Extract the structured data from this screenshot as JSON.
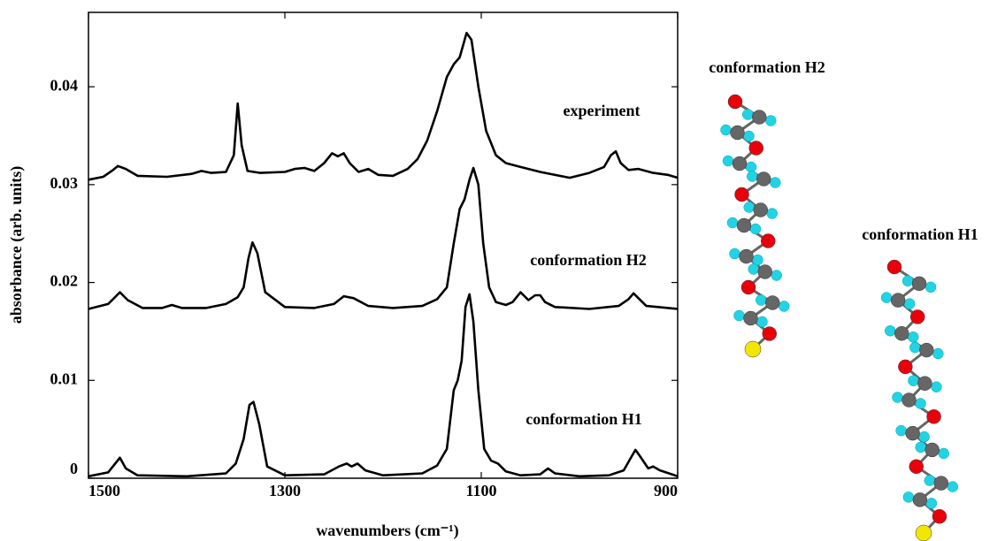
{
  "chart_data": {
    "type": "line",
    "xlabel": "wavenumbers  (cm⁻¹)",
    "ylabel": "absorbance  (arb. units)",
    "xlim": [
      1500,
      900
    ],
    "xticks": [
      1500,
      1300,
      1100,
      900
    ],
    "ylim": [
      0,
      0.0476
    ],
    "yticks": [
      0,
      0.01,
      0.02,
      0.03,
      0.04
    ],
    "series": [
      {
        "name": "experiment",
        "color": "#000000",
        "x": [
          1500,
          1485,
          1475,
          1470,
          1462,
          1450,
          1420,
          1395,
          1385,
          1375,
          1360,
          1352,
          1348,
          1344,
          1338,
          1325,
          1300,
          1290,
          1280,
          1270,
          1260,
          1252,
          1246,
          1240,
          1234,
          1225,
          1215,
          1205,
          1190,
          1175,
          1165,
          1155,
          1145,
          1135,
          1128,
          1122,
          1115,
          1110,
          1103,
          1095,
          1085,
          1075,
          1060,
          1040,
          1010,
          990,
          975,
          968,
          963,
          958,
          950,
          940,
          925,
          910,
          900
        ],
        "values": [
          0.0305,
          0.0308,
          0.0315,
          0.0319,
          0.0316,
          0.0309,
          0.0308,
          0.0311,
          0.0314,
          0.0312,
          0.0313,
          0.033,
          0.0383,
          0.034,
          0.0314,
          0.0312,
          0.0313,
          0.0316,
          0.0317,
          0.0314,
          0.0322,
          0.0332,
          0.0329,
          0.0332,
          0.0322,
          0.0313,
          0.0316,
          0.031,
          0.0309,
          0.0316,
          0.0326,
          0.0345,
          0.0375,
          0.041,
          0.0423,
          0.043,
          0.0455,
          0.0448,
          0.04,
          0.0355,
          0.033,
          0.0322,
          0.0318,
          0.0313,
          0.0307,
          0.0312,
          0.0318,
          0.033,
          0.0334,
          0.0322,
          0.0315,
          0.0316,
          0.0312,
          0.031,
          0.0307
        ]
      },
      {
        "name": "conformation H2",
        "color": "#000000",
        "x": [
          1500,
          1480,
          1472,
          1468,
          1460,
          1445,
          1425,
          1415,
          1405,
          1380,
          1360,
          1348,
          1342,
          1337,
          1333,
          1328,
          1320,
          1300,
          1270,
          1250,
          1240,
          1230,
          1215,
          1190,
          1160,
          1145,
          1135,
          1128,
          1122,
          1117,
          1112,
          1108,
          1103,
          1098,
          1092,
          1085,
          1075,
          1068,
          1060,
          1052,
          1045,
          1040,
          1035,
          1025,
          990,
          960,
          950,
          945,
          940,
          932,
          920,
          900
        ],
        "values": [
          0.0173,
          0.0178,
          0.0186,
          0.019,
          0.0182,
          0.0174,
          0.0174,
          0.0177,
          0.0174,
          0.0174,
          0.0178,
          0.0185,
          0.0195,
          0.0225,
          0.0241,
          0.023,
          0.019,
          0.0175,
          0.0174,
          0.0178,
          0.0186,
          0.0184,
          0.0176,
          0.0174,
          0.0176,
          0.0183,
          0.0195,
          0.024,
          0.0275,
          0.0285,
          0.0305,
          0.0317,
          0.03,
          0.024,
          0.0195,
          0.018,
          0.0177,
          0.018,
          0.019,
          0.0182,
          0.0187,
          0.0187,
          0.018,
          0.0175,
          0.0173,
          0.0176,
          0.0183,
          0.0189,
          0.0184,
          0.0176,
          0.0175,
          0.0173
        ]
      },
      {
        "name": "conformation H1",
        "color": "#000000",
        "x": [
          1500,
          1480,
          1472,
          1468,
          1462,
          1450,
          1400,
          1360,
          1350,
          1342,
          1336,
          1332,
          1326,
          1318,
          1300,
          1260,
          1245,
          1237,
          1232,
          1226,
          1218,
          1200,
          1160,
          1145,
          1135,
          1128,
          1124,
          1120,
          1116,
          1112,
          1108,
          1103,
          1097,
          1090,
          1083,
          1075,
          1060,
          1040,
          1032,
          1025,
          1000,
          970,
          955,
          947,
          943,
          938,
          930,
          925,
          918,
          900
        ],
        "values": [
          0.0002,
          0.0006,
          0.0016,
          0.0021,
          0.001,
          0.0003,
          0.0002,
          0.0005,
          0.0015,
          0.004,
          0.0075,
          0.0078,
          0.0055,
          0.0012,
          0.0003,
          0.0004,
          0.0012,
          0.0015,
          0.0012,
          0.0015,
          0.0008,
          0.0003,
          0.0005,
          0.0013,
          0.003,
          0.009,
          0.01,
          0.012,
          0.0175,
          0.0188,
          0.016,
          0.009,
          0.003,
          0.0018,
          0.0015,
          0.0007,
          0.0003,
          0.0004,
          0.001,
          0.0005,
          0.0002,
          0.0003,
          0.0008,
          0.0022,
          0.0029,
          0.0022,
          0.001,
          0.0012,
          0.0008,
          0.0002
        ]
      }
    ],
    "molecules": [
      {
        "label": "conformation H2"
      },
      {
        "label": "conformation H1"
      }
    ]
  }
}
